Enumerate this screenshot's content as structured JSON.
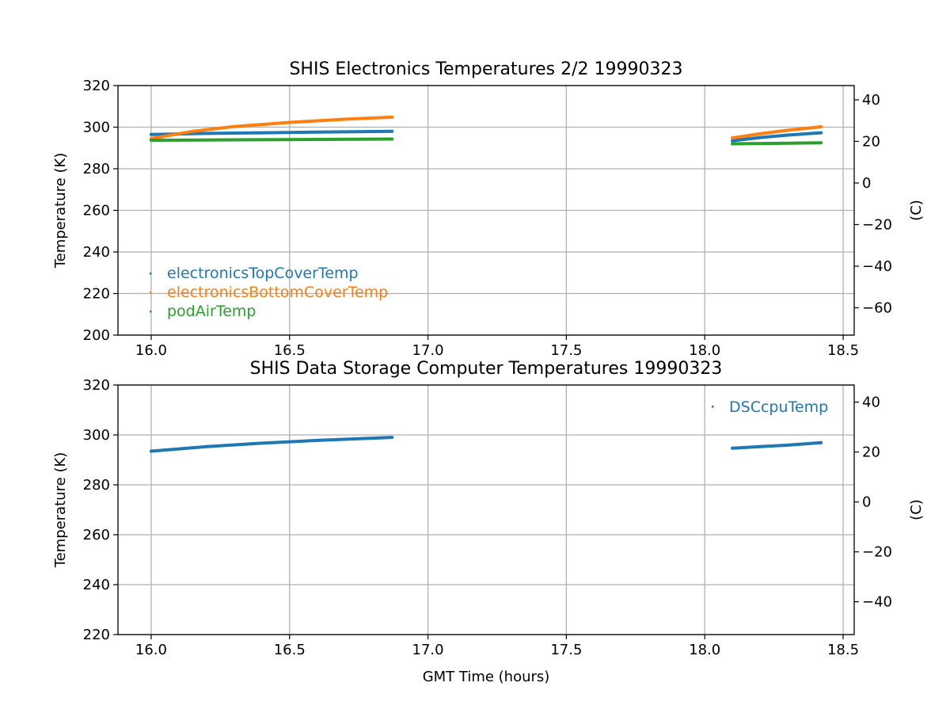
{
  "chart_data": [
    {
      "type": "scatter",
      "title": "SHIS Electronics Temperatures 2/2 19990323",
      "xlabel": "",
      "ylabel": "Temperature (K)",
      "y2label": "(C)",
      "xlim": [
        15.88,
        18.54
      ],
      "ylim": [
        200,
        320
      ],
      "y2lim": [
        -73.15,
        46.85
      ],
      "xticks": [
        16.0,
        16.5,
        17.0,
        17.5,
        18.0,
        18.5
      ],
      "xtick_labels": [
        "16.0",
        "16.5",
        "17.0",
        "17.5",
        "18.0",
        "18.5"
      ],
      "yticks": [
        200,
        220,
        240,
        260,
        280,
        300,
        320
      ],
      "ytick_labels": [
        "200",
        "220",
        "240",
        "260",
        "280",
        "300",
        "320"
      ],
      "y2ticks": [
        -60,
        -40,
        -20,
        0,
        20,
        40
      ],
      "y2tick_labels": [
        "−60",
        "−40",
        "−20",
        "0",
        "20",
        "40"
      ],
      "grid": true,
      "legend_position": "lower-left",
      "series": [
        {
          "name": "electronicsTopCoverTemp",
          "color": "#1f77b4",
          "segments": [
            {
              "x": [
                16.0,
                16.2,
                16.4,
                16.6,
                16.87
              ],
              "y": [
                296.5,
                297.0,
                297.3,
                297.6,
                298.0
              ]
            },
            {
              "x": [
                18.1,
                18.2,
                18.3,
                18.42
              ],
              "y": [
                293.5,
                295.0,
                296.2,
                297.3
              ]
            }
          ]
        },
        {
          "name": "electronicsBottomCoverTemp",
          "color": "#ff7f0e",
          "segments": [
            {
              "x": [
                16.0,
                16.15,
                16.3,
                16.5,
                16.7,
                16.87
              ],
              "y": [
                294.5,
                298.0,
                300.3,
                302.3,
                303.8,
                304.8
              ]
            },
            {
              "x": [
                18.1,
                18.2,
                18.3,
                18.42
              ],
              "y": [
                294.8,
                296.8,
                298.5,
                300.2
              ]
            }
          ]
        },
        {
          "name": "podAirTemp",
          "color": "#2ca02c",
          "segments": [
            {
              "x": [
                16.0,
                16.3,
                16.6,
                16.87
              ],
              "y": [
                293.7,
                293.9,
                294.1,
                294.3
              ]
            },
            {
              "x": [
                18.1,
                18.25,
                18.42
              ],
              "y": [
                292.0,
                292.2,
                292.5
              ]
            }
          ]
        }
      ]
    },
    {
      "type": "scatter",
      "title": "SHIS Data Storage Computer Temperatures 19990323",
      "xlabel": "GMT Time (hours)",
      "ylabel": "Temperature (K)",
      "y2label": "(C)",
      "xlim": [
        15.88,
        18.54
      ],
      "ylim": [
        220,
        320
      ],
      "y2lim": [
        -53.15,
        46.85
      ],
      "xticks": [
        16.0,
        16.5,
        17.0,
        17.5,
        18.0,
        18.5
      ],
      "xtick_labels": [
        "16.0",
        "16.5",
        "17.0",
        "17.5",
        "18.0",
        "18.5"
      ],
      "yticks": [
        220,
        240,
        260,
        280,
        300,
        320
      ],
      "ytick_labels": [
        "220",
        "240",
        "260",
        "280",
        "300",
        "320"
      ],
      "y2ticks": [
        -40,
        -20,
        0,
        20,
        40
      ],
      "y2tick_labels": [
        "−40",
        "−20",
        "0",
        "20",
        "40"
      ],
      "grid": true,
      "legend_position": "upper-right",
      "series": [
        {
          "name": "DSCcpuTemp",
          "color": "#1f77b4",
          "segments": [
            {
              "x": [
                16.0,
                16.2,
                16.4,
                16.6,
                16.87
              ],
              "y": [
                293.5,
                295.3,
                296.7,
                297.8,
                299.0
              ]
            },
            {
              "x": [
                18.1,
                18.2,
                18.3,
                18.42
              ],
              "y": [
                294.7,
                295.3,
                295.9,
                296.9
              ]
            }
          ]
        }
      ]
    }
  ]
}
